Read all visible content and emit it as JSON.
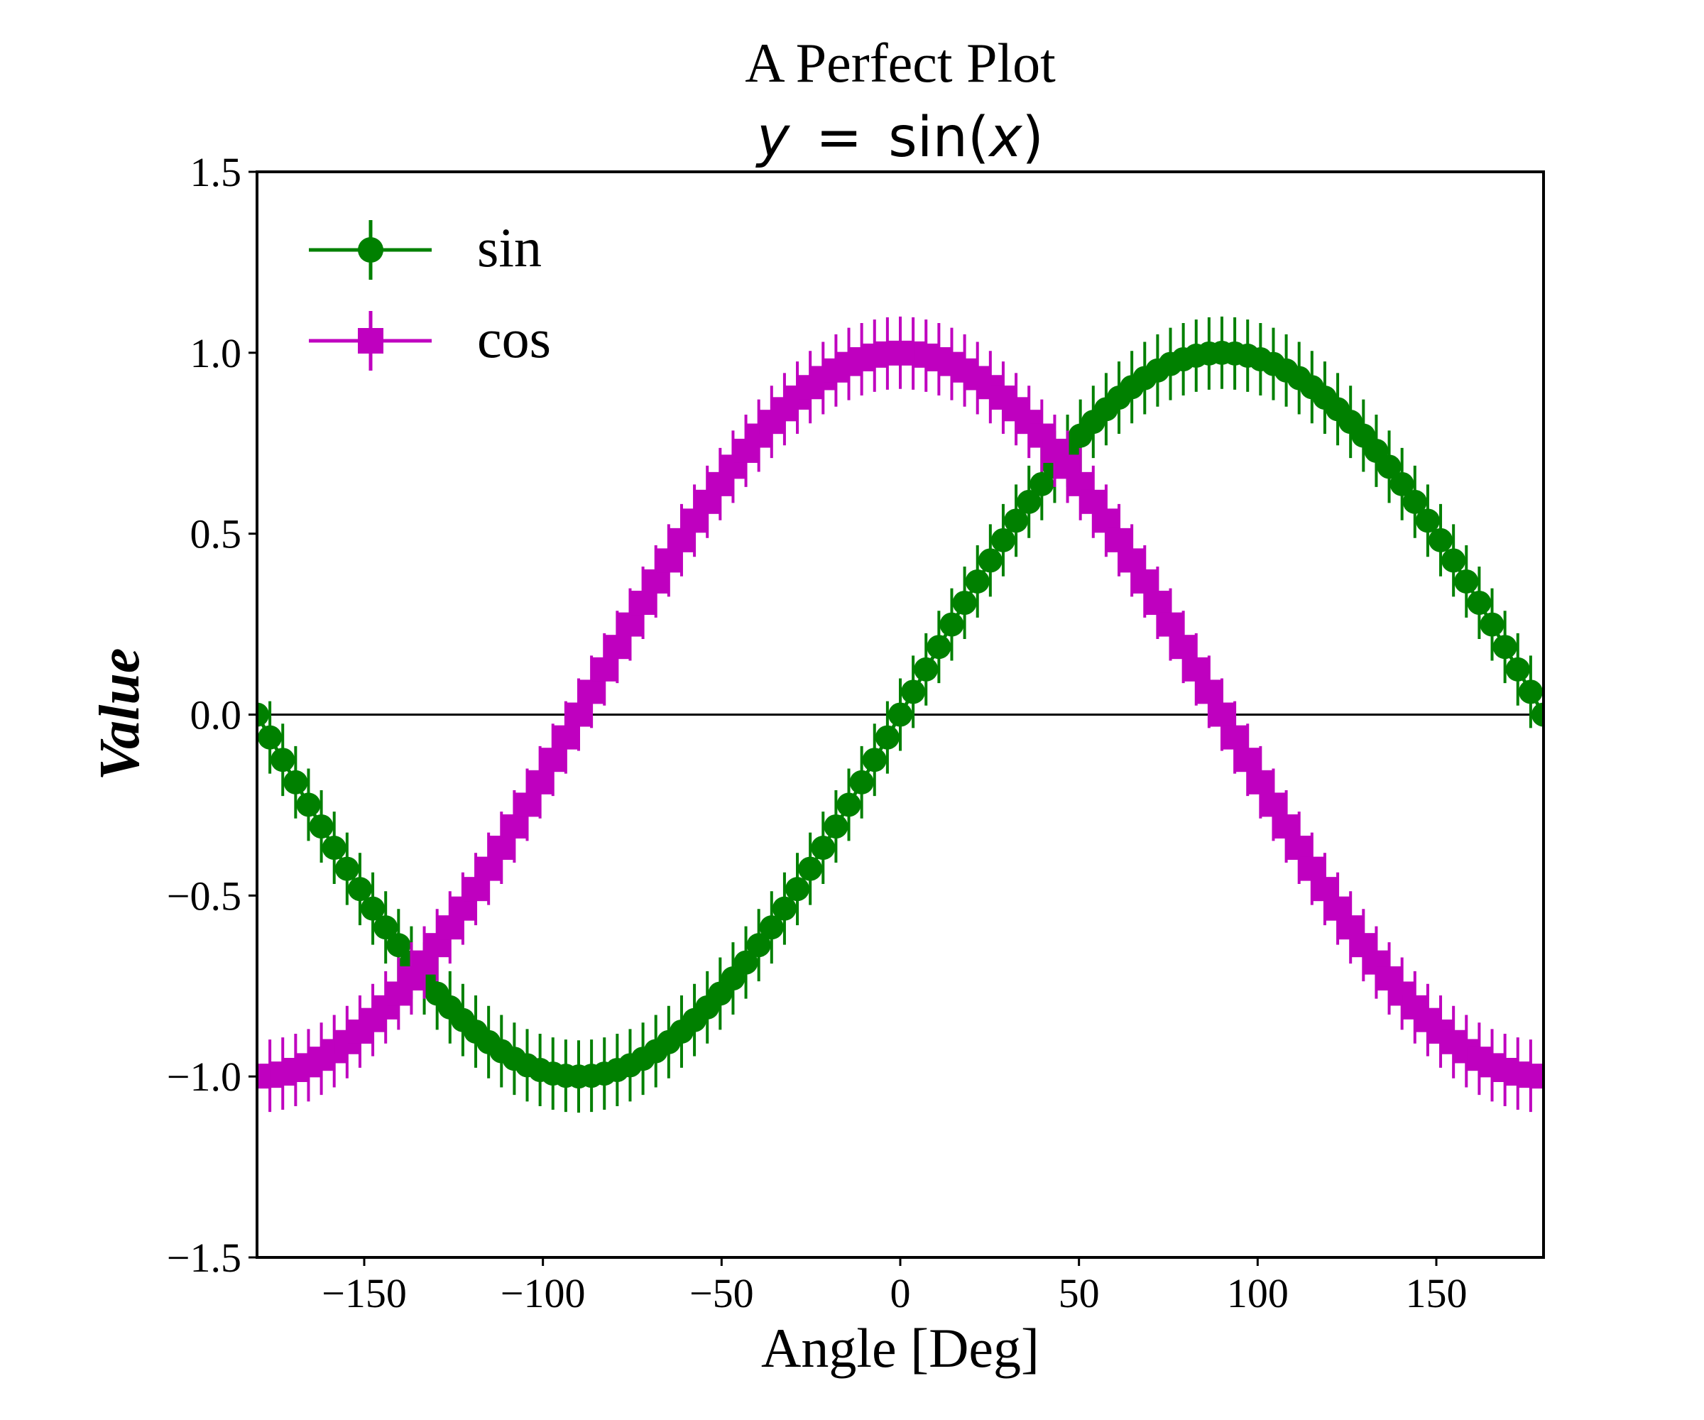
{
  "chart_data": {
    "type": "line",
    "title": "A Perfect Plot",
    "subtitle": "y = sin(x)",
    "subtitle_parts": {
      "y": "y",
      "eq": "=",
      "fn": "sin(",
      "x": "x",
      "close": ")"
    },
    "xlabel": "Angle [Deg]",
    "ylabel": "Value",
    "xlim": [
      -180,
      180
    ],
    "ylim": [
      -1.5,
      1.5
    ],
    "xticks": [
      -150,
      -100,
      -50,
      0,
      50,
      100,
      150
    ],
    "xtick_labels": [
      "−150",
      "−100",
      "−50",
      "0",
      "50",
      "100",
      "150"
    ],
    "yticks": [
      1.5,
      1.0,
      0.5,
      0.0,
      -0.5,
      -1.0,
      -1.5
    ],
    "ytick_labels": [
      "1.5",
      "1.0",
      "0.5",
      "0.0",
      "−0.5",
      "−1.0",
      "−1.5"
    ],
    "grid": false,
    "reference_line_y": 0,
    "legend_position": "top-left",
    "x_start": -180,
    "x_step": 3.6,
    "n_points": 101,
    "error": 0.1,
    "series": [
      {
        "name": "sin",
        "function": "sin",
        "marker": "circle",
        "color": "#008000",
        "values": [
          0.0,
          -0.063,
          -0.125,
          -0.187,
          -0.249,
          -0.309,
          -0.368,
          -0.426,
          -0.482,
          -0.536,
          -0.588,
          -0.637,
          -0.685,
          -0.729,
          -0.771,
          -0.809,
          -0.844,
          -0.876,
          -0.905,
          -0.93,
          -0.951,
          -0.969,
          -0.982,
          -0.992,
          -0.998,
          -1.0,
          -0.998,
          -0.992,
          -0.982,
          -0.969,
          -0.951,
          -0.93,
          -0.905,
          -0.876,
          -0.844,
          -0.809,
          -0.771,
          -0.729,
          -0.685,
          -0.637,
          -0.588,
          -0.536,
          -0.482,
          -0.426,
          -0.368,
          -0.309,
          -0.249,
          -0.187,
          -0.125,
          -0.063,
          0.0,
          0.063,
          0.125,
          0.187,
          0.249,
          0.309,
          0.368,
          0.426,
          0.482,
          0.536,
          0.588,
          0.637,
          0.685,
          0.729,
          0.771,
          0.809,
          0.844,
          0.876,
          0.905,
          0.93,
          0.951,
          0.969,
          0.982,
          0.992,
          0.998,
          1.0,
          0.998,
          0.992,
          0.982,
          0.969,
          0.951,
          0.93,
          0.905,
          0.876,
          0.844,
          0.809,
          0.771,
          0.729,
          0.685,
          0.637,
          0.588,
          0.536,
          0.482,
          0.426,
          0.368,
          0.309,
          0.249,
          0.187,
          0.125,
          0.063,
          0.0
        ]
      },
      {
        "name": "cos",
        "function": "cos",
        "marker": "square",
        "color": "#bf00bf",
        "values": [
          -1.0,
          -0.998,
          -0.992,
          -0.982,
          -0.969,
          -0.951,
          -0.93,
          -0.905,
          -0.876,
          -0.844,
          -0.809,
          -0.771,
          -0.729,
          -0.685,
          -0.637,
          -0.588,
          -0.536,
          -0.482,
          -0.426,
          -0.368,
          -0.309,
          -0.249,
          -0.187,
          -0.125,
          -0.063,
          0.0,
          0.063,
          0.125,
          0.187,
          0.249,
          0.309,
          0.368,
          0.426,
          0.482,
          0.536,
          0.588,
          0.637,
          0.685,
          0.729,
          0.771,
          0.809,
          0.844,
          0.876,
          0.905,
          0.93,
          0.951,
          0.969,
          0.982,
          0.992,
          0.998,
          1.0,
          0.998,
          0.992,
          0.982,
          0.969,
          0.951,
          0.93,
          0.905,
          0.876,
          0.844,
          0.809,
          0.771,
          0.729,
          0.685,
          0.637,
          0.588,
          0.536,
          0.482,
          0.426,
          0.368,
          0.309,
          0.249,
          0.187,
          0.125,
          0.063,
          0.0,
          -0.063,
          -0.125,
          -0.187,
          -0.249,
          -0.309,
          -0.368,
          -0.426,
          -0.482,
          -0.536,
          -0.588,
          -0.637,
          -0.685,
          -0.729,
          -0.771,
          -0.809,
          -0.844,
          -0.876,
          -0.905,
          -0.93,
          -0.951,
          -0.969,
          -0.982,
          -0.992,
          -0.998,
          -1.0
        ]
      }
    ]
  }
}
